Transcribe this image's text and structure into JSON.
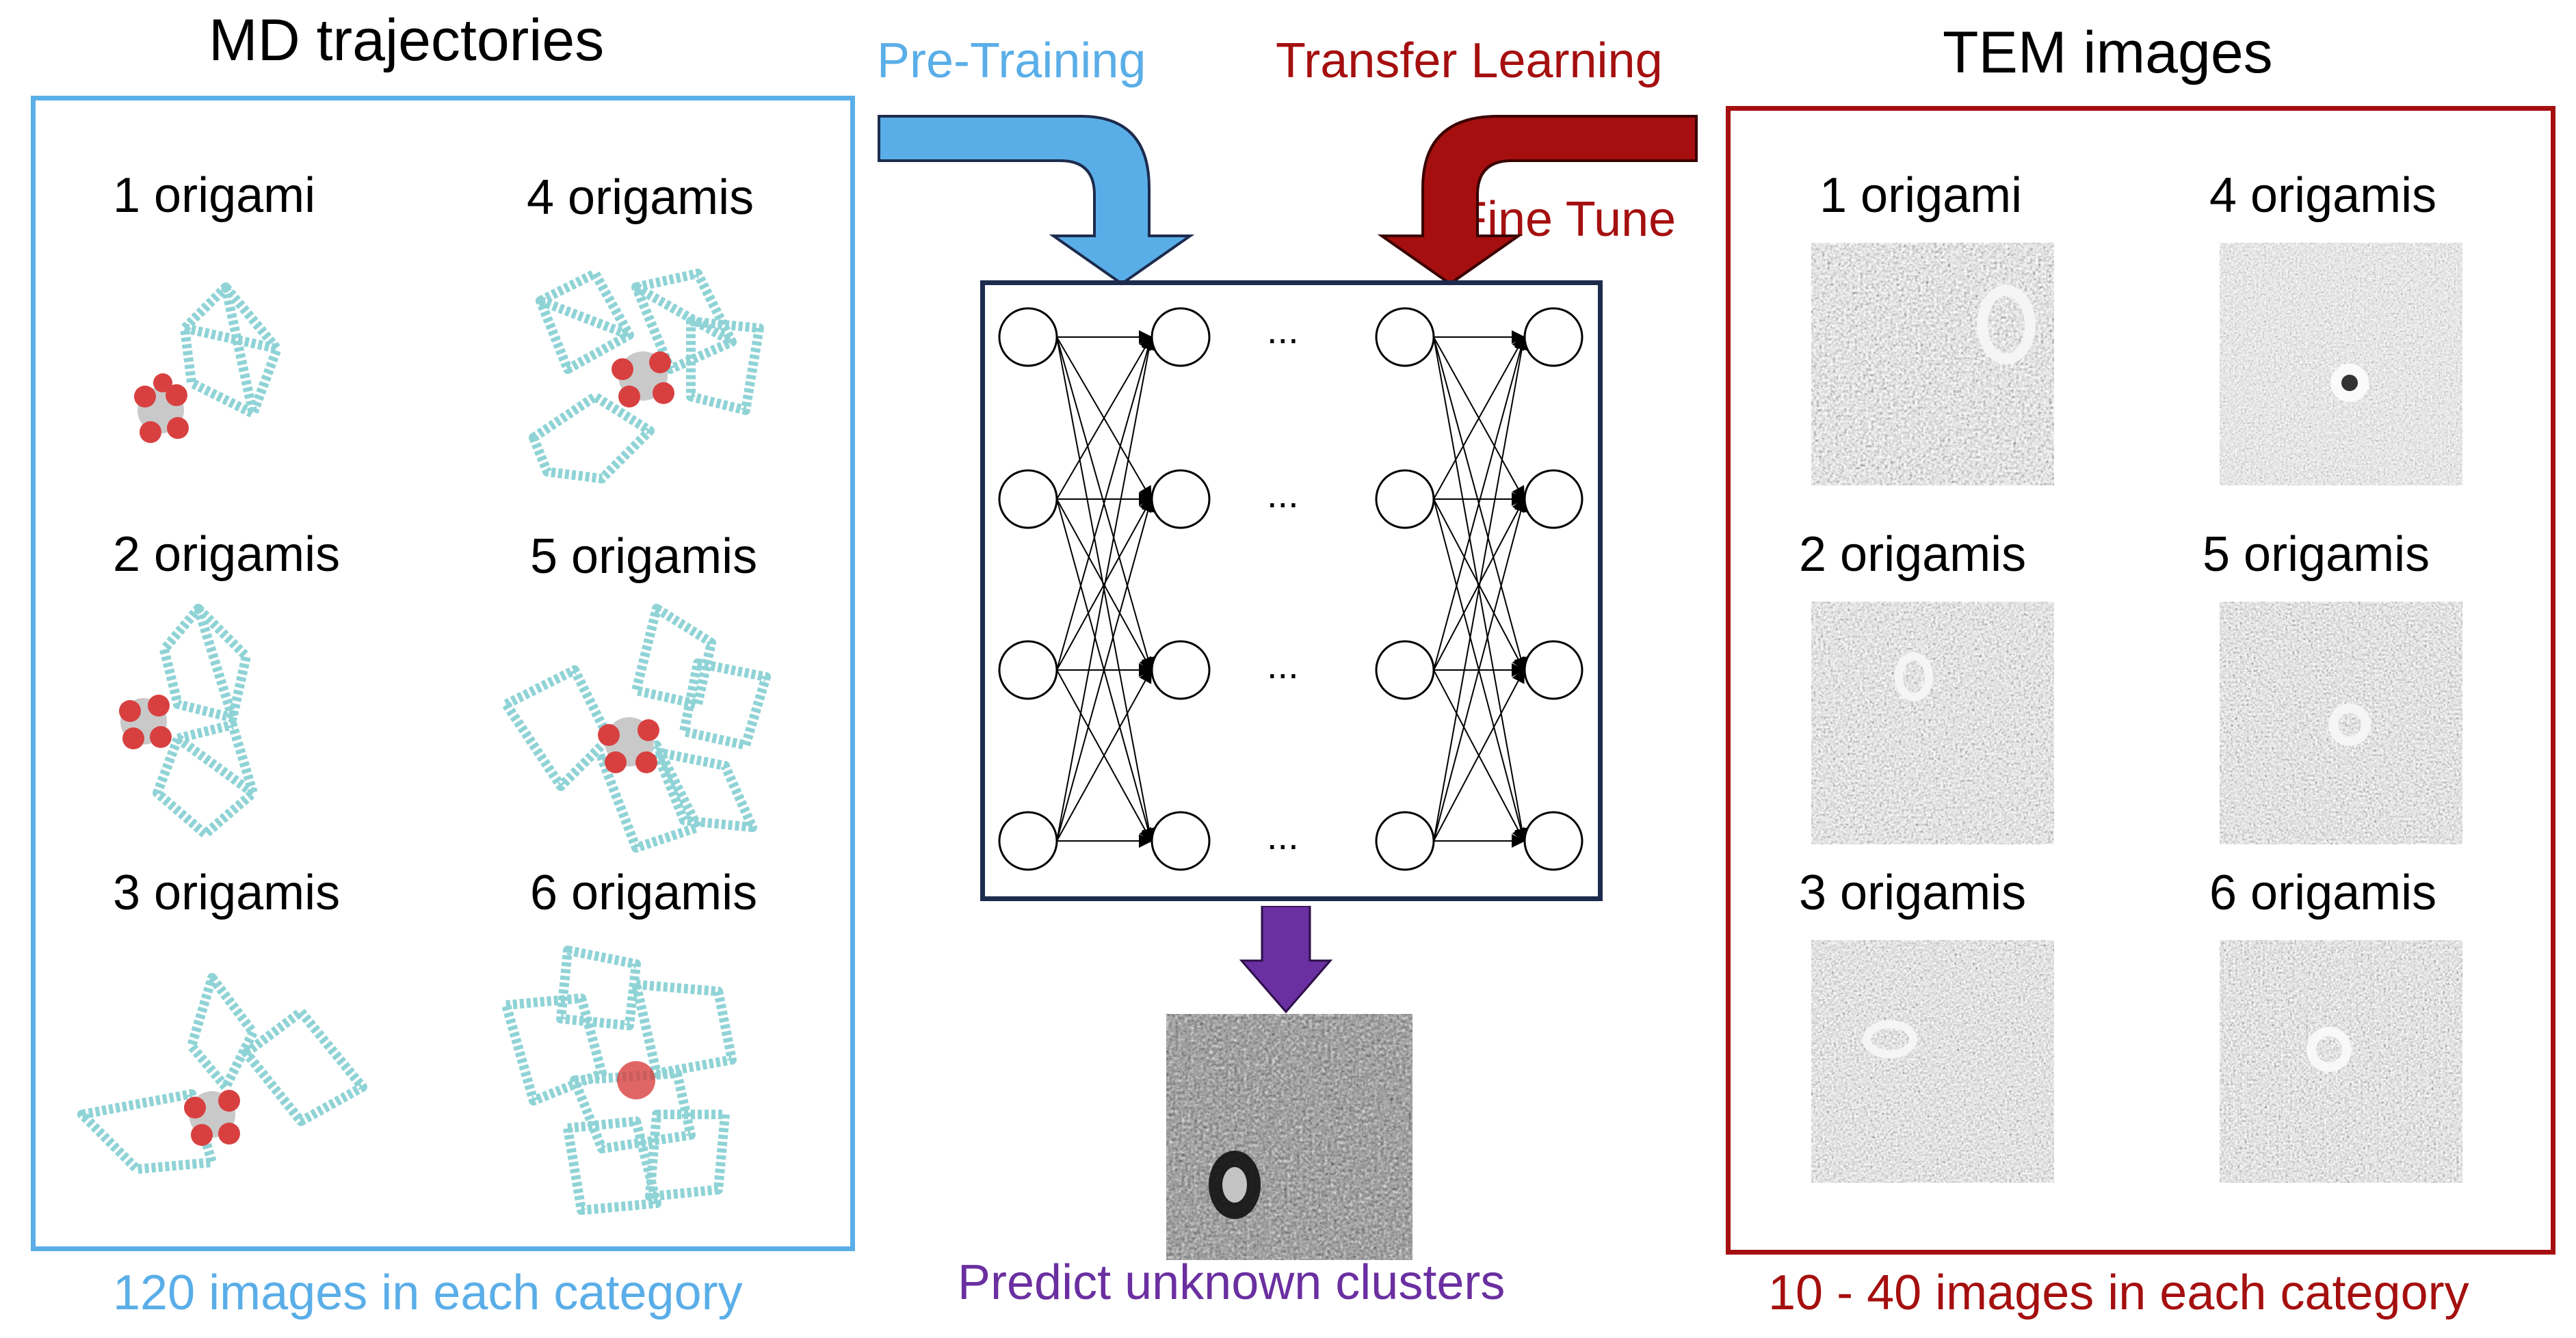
{
  "colors": {
    "pretrain": "#5aaee8",
    "pretrain_text": "#5aaee8",
    "transfer": "#a50f0f",
    "predict": "#6a2fa0",
    "network_border": "#1d2b4d",
    "origami": "#8fd3d6",
    "core": "#d84040"
  },
  "left_panel": {
    "title": "MD trajectories",
    "caption": "120 images in each category",
    "items": [
      {
        "label": "1 origami"
      },
      {
        "label": "4 origamis"
      },
      {
        "label": "2 origamis"
      },
      {
        "label": "5 origamis"
      },
      {
        "label": "3 origamis"
      },
      {
        "label": "6 origamis"
      }
    ]
  },
  "right_panel": {
    "title": "TEM images",
    "caption": "10 - 40 images in each category",
    "items": [
      {
        "label": "1 origami"
      },
      {
        "label": "4 origamis"
      },
      {
        "label": "2 origamis"
      },
      {
        "label": "5 origamis"
      },
      {
        "label": "3 origamis"
      },
      {
        "label": "6 origamis"
      }
    ]
  },
  "center": {
    "pretrain_label": "Pre-Training",
    "transfer_label": "Transfer Learning",
    "finetune_label": "Fine Tune",
    "ellipsis": "...",
    "predict_label": "Predict unknown clusters"
  }
}
